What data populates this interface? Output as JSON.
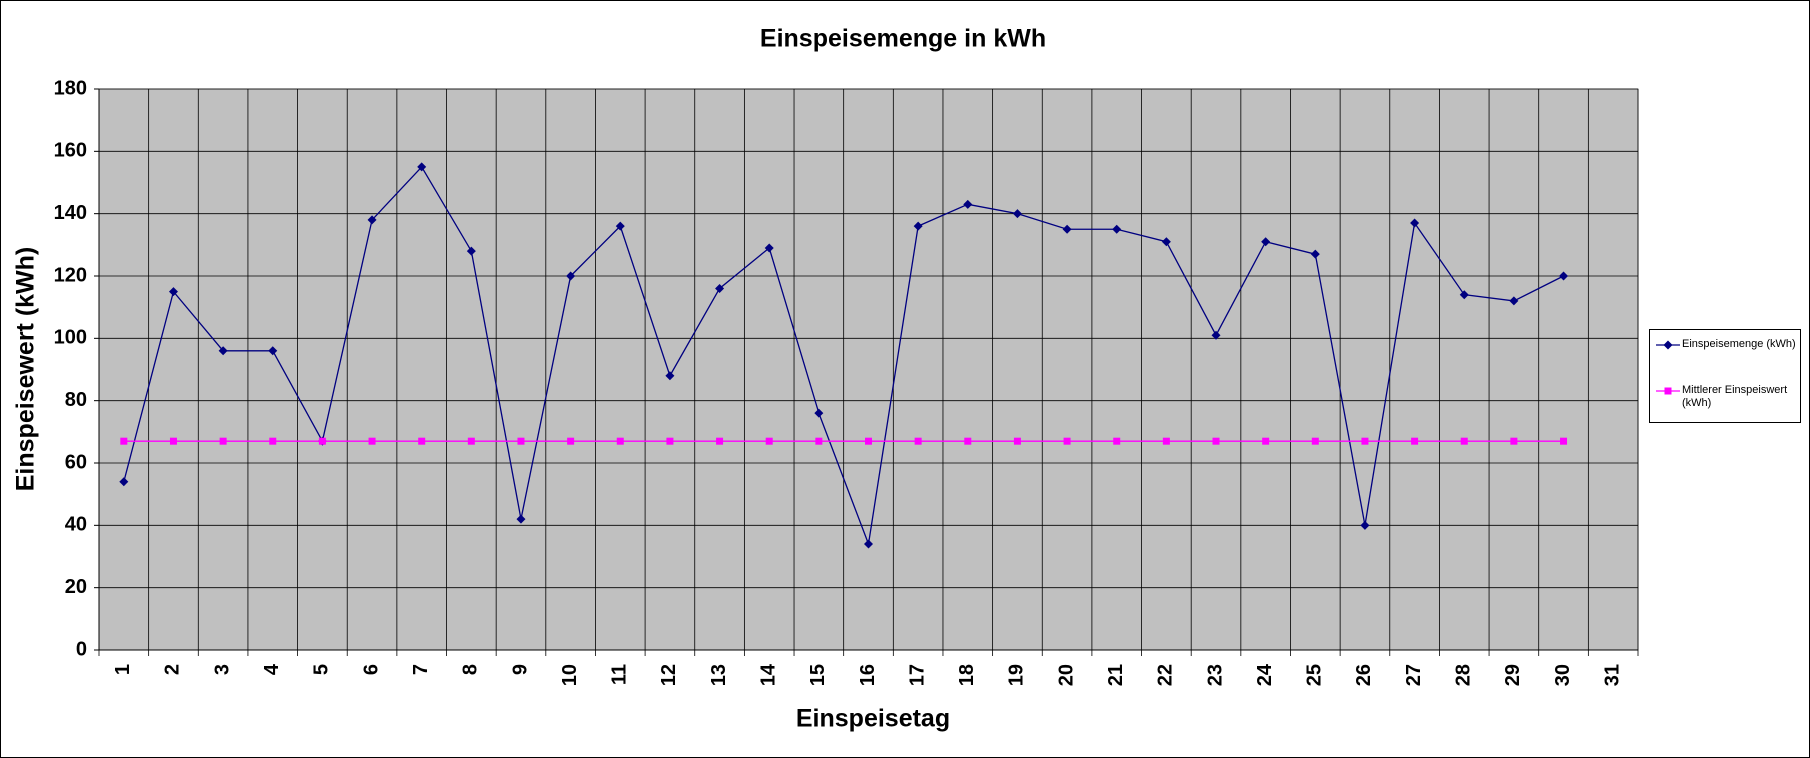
{
  "chart_data": {
    "type": "line",
    "title": "Einspeisemenge in kWh",
    "x_label": "Einspeisetag",
    "y_label": "Einspeisewert  (kWh)",
    "categories": [
      "1",
      "2",
      "3",
      "4",
      "5",
      "6",
      "7",
      "8",
      "9",
      "10",
      "11",
      "12",
      "13",
      "14",
      "15",
      "16",
      "17",
      "18",
      "19",
      "20",
      "21",
      "22",
      "23",
      "24",
      "25",
      "26",
      "27",
      "28",
      "29",
      "30",
      "31"
    ],
    "series": [
      {
        "name": "Einspeisemenge (kWh)",
        "color": "#000080",
        "marker": "diamond",
        "values": [
          54,
          115,
          96,
          96,
          67,
          138,
          155,
          128,
          42,
          120,
          136,
          88,
          116,
          129,
          76,
          34,
          136,
          143,
          140,
          135,
          135,
          131,
          101,
          131,
          127,
          40,
          137,
          114,
          112,
          120,
          null
        ]
      },
      {
        "name": "Mittlerer Einspeiswert (kWh)",
        "color": "#ff00ff",
        "marker": "square",
        "values": [
          67,
          67,
          67,
          67,
          67,
          67,
          67,
          67,
          67,
          67,
          67,
          67,
          67,
          67,
          67,
          67,
          67,
          67,
          67,
          67,
          67,
          67,
          67,
          67,
          67,
          67,
          67,
          67,
          67,
          67,
          null
        ]
      }
    ],
    "ylim": [
      0,
      180
    ],
    "yticks": [
      0,
      20,
      40,
      60,
      80,
      100,
      120,
      140,
      160,
      180
    ],
    "grid": true,
    "legend": "right",
    "plot_background": "#c0c0c0"
  }
}
